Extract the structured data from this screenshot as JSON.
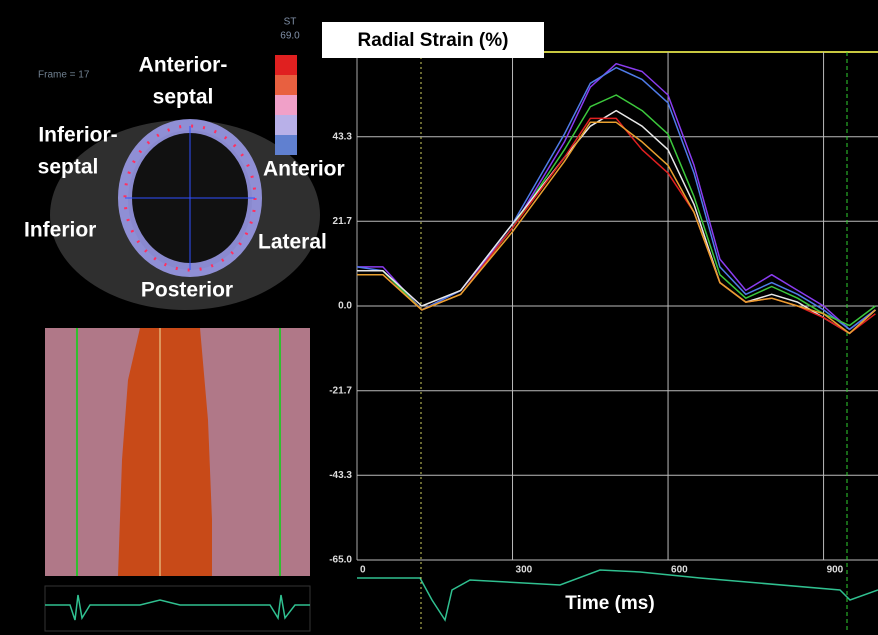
{
  "chart_data": {
    "type": "line",
    "title": "Radial Strain (%)",
    "x_label": "Time (ms)",
    "x": [
      0,
      50,
      125,
      200,
      300,
      400,
      450,
      500,
      550,
      600,
      650,
      700,
      750,
      800,
      850,
      900,
      950,
      1000
    ],
    "series": [
      {
        "color": "#8a3cf0",
        "values": [
          10,
          10,
          -1,
          4,
          20,
          42,
          56,
          62,
          60,
          54,
          36,
          12,
          4,
          8,
          4,
          0,
          -6,
          -1
        ]
      },
      {
        "color": "#4f7be8",
        "values": [
          10,
          9,
          -1,
          4,
          21,
          44,
          57,
          61,
          58,
          52,
          34,
          10,
          3,
          6,
          3,
          -1,
          -6,
          -1
        ]
      },
      {
        "color": "#3cc83c",
        "values": [
          9,
          9,
          -1,
          3,
          20,
          40,
          51,
          54,
          50,
          44,
          28,
          8,
          2,
          5,
          2,
          -2,
          -5,
          0
        ]
      },
      {
        "color": "#e8e8e8",
        "values": [
          9,
          9,
          0,
          4,
          21,
          38,
          46,
          50,
          46,
          40,
          26,
          6,
          1,
          3,
          1,
          -3,
          -7,
          -1
        ]
      },
      {
        "color": "#e02020",
        "values": [
          8,
          8,
          -1,
          3,
          20,
          38,
          48,
          48,
          40,
          34,
          24,
          6,
          1,
          2,
          0,
          -3,
          -7,
          -2
        ]
      },
      {
        "color": "#e8a030",
        "values": [
          8,
          8,
          -1,
          3,
          19,
          37,
          47,
          47,
          42,
          36,
          24,
          6,
          1,
          2,
          0,
          -2,
          -7,
          -1
        ]
      }
    ],
    "xlim": [
      0,
      1005
    ],
    "xticks": [
      0,
      300,
      600,
      900
    ],
    "ylim": [
      -65,
      65
    ],
    "yticks": [
      {
        "value": -65,
        "label": "-65.0"
      },
      -43.3,
      -21.7,
      {
        "value": 0,
        "label": "0.0"
      },
      21.7,
      43.3
    ],
    "grid": true
  },
  "image_labels": {
    "frame": "Frame = 17",
    "scale_name": "ST",
    "scale_max": "69.0",
    "anterior_septal": [
      "Anterior-",
      "septal"
    ],
    "inferior_septal": [
      "Inferior-",
      "septal"
    ],
    "anterior": "Anterior",
    "lateral": "Lateral",
    "inferior": "Inferior",
    "posterior": "Posterior"
  }
}
